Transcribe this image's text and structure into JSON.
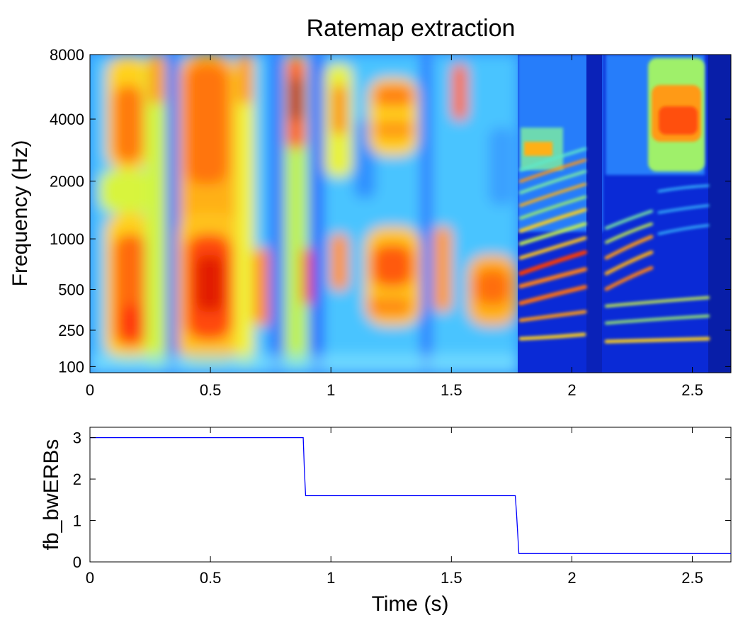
{
  "chart_data": [
    {
      "type": "heatmap",
      "title": "Ratemap extraction",
      "xlabel": "",
      "ylabel": "Frequency (Hz)",
      "xlim": [
        0,
        2.66
      ],
      "ylim": [
        80,
        8000
      ],
      "y_scale": "erb",
      "x_ticks": [
        0,
        0.5,
        1,
        1.5,
        2,
        2.5
      ],
      "x_tick_labels": [
        "0",
        "0.5",
        "1",
        "1.5",
        "2",
        "2.5"
      ],
      "y_ticks": [
        100,
        250,
        500,
        1000,
        2000,
        4000,
        8000
      ],
      "y_tick_labels": [
        "100",
        "250",
        "500",
        "1000",
        "2000",
        "4000",
        "8000"
      ],
      "colormap": "jet",
      "grid": false
    },
    {
      "type": "line",
      "title": "",
      "xlabel": "Time (s)",
      "ylabel": "fb_bwERBs",
      "xlim": [
        0,
        2.66
      ],
      "ylim": [
        0,
        3.25
      ],
      "x_ticks": [
        0,
        0.5,
        1,
        1.5,
        2,
        2.5
      ],
      "x_tick_labels": [
        "0",
        "0.5",
        "1",
        "1.5",
        "2",
        "2.5"
      ],
      "y_ticks": [
        0,
        1,
        2,
        3
      ],
      "y_tick_labels": [
        "0",
        "1",
        "2",
        "3"
      ],
      "grid": false,
      "series": [
        {
          "color": "#0000ff",
          "x": [
            0,
            0.885,
            0.89,
            0.895,
            1.765,
            1.77,
            1.78,
            2.66
          ],
          "y": [
            3,
            3,
            2.2,
            1.6,
            1.6,
            1.2,
            0.2,
            0.2
          ]
        }
      ]
    }
  ]
}
